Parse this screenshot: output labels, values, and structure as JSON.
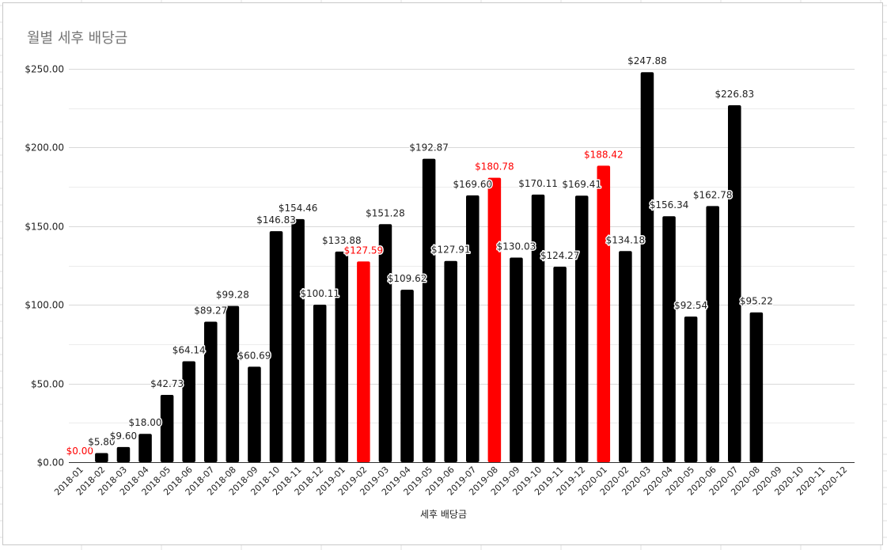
{
  "chart_data": {
    "type": "bar",
    "title": "월별 세후 배당금",
    "xlabel": "세후 배당금",
    "ylabel": "",
    "ylim": [
      0,
      250
    ],
    "yticks": [
      0,
      50,
      100,
      150,
      200,
      250
    ],
    "ytick_labels": [
      "$0.00",
      "$50.00",
      "$100.00",
      "$150.00",
      "$200.00",
      "$250.00"
    ],
    "grid": true,
    "legend": "none",
    "colors": {
      "default": "#000000",
      "highlight": "#ff0000",
      "axis": "#333333",
      "grid": "#d9d9d9",
      "minor_grid": "#ececec"
    },
    "categories": [
      "2018-01",
      "2018-02",
      "2018-03",
      "2018-04",
      "2018-05",
      "2018-06",
      "2018-07",
      "2018-08",
      "2018-09",
      "2018-10",
      "2018-11",
      "2018-12",
      "2019-01",
      "2019-02",
      "2019-03",
      "2019-04",
      "2019-05",
      "2019-06",
      "2019-07",
      "2019-08",
      "2019-09",
      "2019-10",
      "2019-11",
      "2019-12",
      "2020-01",
      "2020-02",
      "2020-03",
      "2020-04",
      "2020-05",
      "2020-06",
      "2020-07",
      "2020-08",
      "2020-09",
      "2020-10",
      "2020-11",
      "2020-12"
    ],
    "values": [
      0.0,
      5.8,
      9.6,
      18.0,
      42.73,
      64.14,
      89.27,
      99.28,
      60.69,
      146.83,
      154.46,
      100.11,
      133.88,
      127.59,
      151.28,
      109.62,
      192.87,
      127.91,
      169.6,
      180.78,
      130.03,
      170.11,
      124.27,
      169.41,
      188.42,
      134.18,
      247.88,
      156.34,
      92.54,
      162.78,
      226.83,
      95.22,
      null,
      null,
      null,
      null
    ],
    "data_labels": [
      "$0.00",
      "$5.80",
      "$9.60",
      "$18.00",
      "$42.73",
      "$64.14",
      "$89.27",
      "$99.28",
      "$60.69",
      "$146.83",
      "$154.46",
      "$100.11",
      "$133.88",
      "$127.59",
      "$151.28",
      "$109.62",
      "$192.87",
      "$127.91",
      "$169.60",
      "$180.78",
      "$130.03",
      "$170.11",
      "$124.27",
      "$169.41",
      "$188.42",
      "$134.18",
      "$247.88",
      "$156.34",
      "$92.54",
      "$162.78",
      "$226.83",
      "$95.22",
      "",
      "",
      "",
      ""
    ],
    "highlighted": [
      "2018-01",
      "2019-02",
      "2019-08",
      "2020-01"
    ]
  }
}
